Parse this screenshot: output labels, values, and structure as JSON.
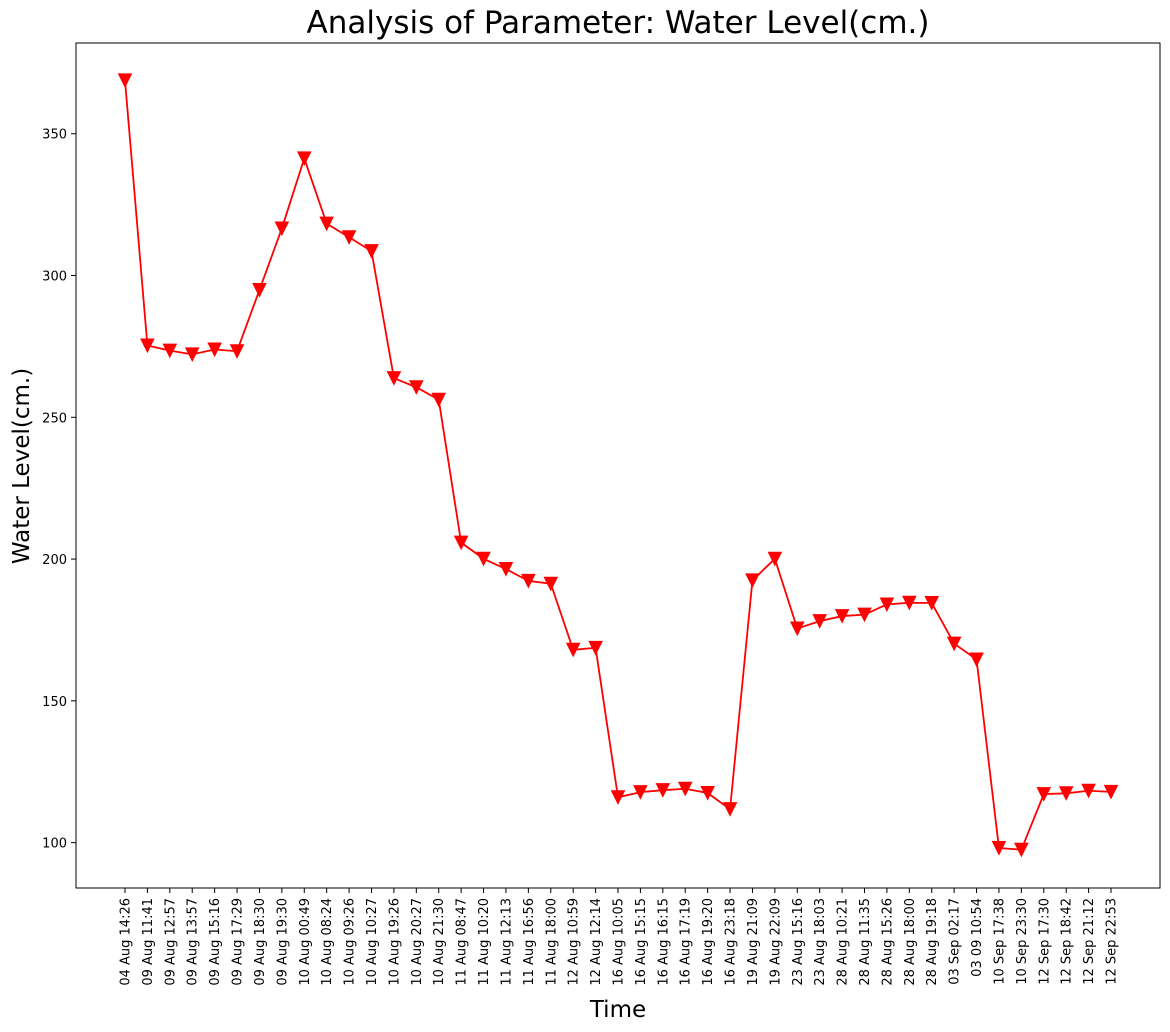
{
  "chart_data": {
    "type": "line",
    "title": "Analysis of Parameter: Water Level(cm.)",
    "xlabel": "Time",
    "ylabel": "Water Level(cm.)",
    "ylim": [
      84,
      382
    ],
    "yticks": [
      100,
      150,
      200,
      250,
      300,
      350
    ],
    "grid": false,
    "legend": "none",
    "marker": "triangle-down",
    "color": "#ff0000",
    "categories": [
      "04 Aug 14:26",
      "09 Aug 11:41",
      "09 Aug 12:57",
      "09 Aug 13:57",
      "09 Aug 15:16",
      "09 Aug 17:29",
      "09 Aug 18:30",
      "09 Aug 19:30",
      "10 Aug 00:49",
      "10 Aug 08:24",
      "10 Aug 09:26",
      "10 Aug 10:27",
      "10 Aug 19:26",
      "10 Aug 20:27",
      "10 Aug 21:30",
      "11 Aug 08:47",
      "11 Aug 10:20",
      "11 Aug 12:13",
      "11 Aug 16:56",
      "11 Aug 18:00",
      "12 Aug 10:59",
      "12 Aug 12:14",
      "16 Aug 10:05",
      "16 Aug 15:15",
      "16 Aug 16:15",
      "16 Aug 17:19",
      "16 Aug 19:20",
      "16 Aug 23:18",
      "19 Aug 21:09",
      "19 Aug 22:09",
      "23 Aug 15:16",
      "23 Aug 18:03",
      "28 Aug 10:21",
      "28 Aug 11:35",
      "28 Aug 15:26",
      "28 Aug 18:00",
      "28 Aug 19:18",
      "03 Sep 02:17",
      "03 09 10:54",
      "10 Sep 17:38",
      "10 Sep 23:30",
      "12 Sep 17:30",
      "12 Sep 18:42",
      "12 Sep 21:12",
      "12 Sep 22:53"
    ],
    "series": [
      {
        "values": [
          368.8,
          275.3,
          273.5,
          272.2,
          273.9,
          273.3,
          294.9,
          316.6,
          341.3,
          318.3,
          313.5,
          308.6,
          263.8,
          260.6,
          256.2,
          205.8,
          200.1,
          196.5,
          192.3,
          191.3,
          168.0,
          168.7,
          116.0,
          117.8,
          118.5,
          119.0,
          117.5,
          111.8,
          192.5,
          200.1,
          175.5,
          178.1,
          179.9,
          180.4,
          184.0,
          184.6,
          184.5,
          170.2,
          164.6,
          98.1,
          97.5,
          117.1,
          117.4,
          118.3,
          117.9
        ]
      }
    ]
  }
}
